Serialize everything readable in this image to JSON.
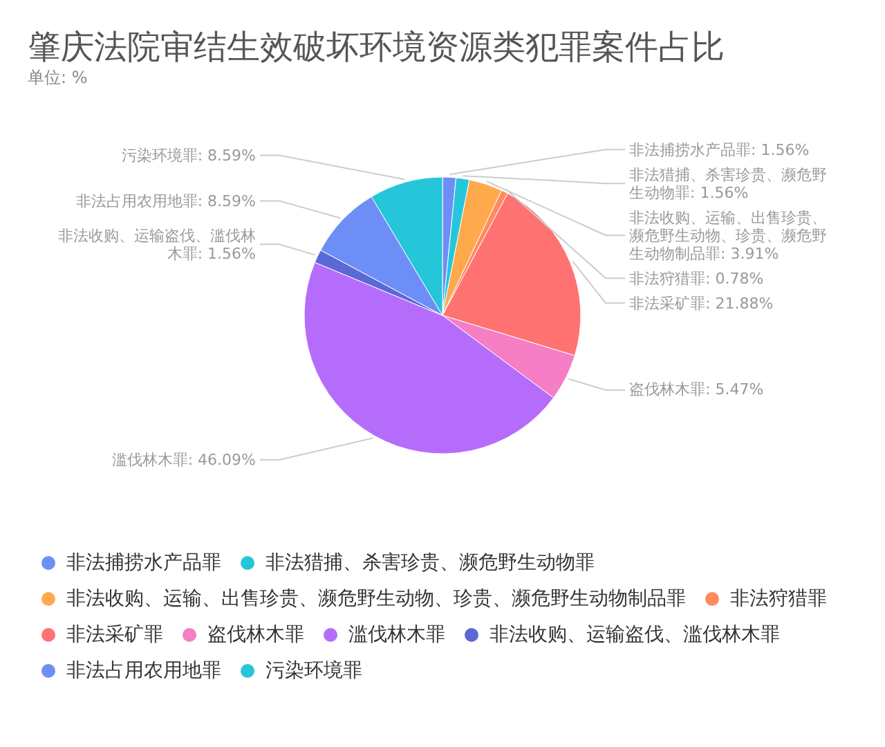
{
  "chart_data": {
    "type": "pie",
    "title": "肇庆法院审结生效破坏环境资源类犯罪案件占比",
    "subtitle": "单位: %",
    "categories": [
      "非法捕捞水产品罪",
      "非法猎捕、杀害珍贵、濒危野生动物罪",
      "非法收购、运输、出售珍贵、濒危野生动物、珍贵、濒危野生动物制品罪",
      "非法狩猎罪",
      "非法采矿罪",
      "盗伐林木罪",
      "滥伐林木罪",
      "非法收购、运输盗伐、滥伐林木罪",
      "非法占用农用地罪",
      "污染环境罪"
    ],
    "values": [
      1.56,
      1.56,
      3.91,
      0.78,
      21.88,
      5.47,
      46.09,
      1.56,
      8.59,
      8.59
    ],
    "value_labels": [
      "非法捕捞水产品罪: 1.56%",
      "非法猎捕、杀害珍贵、濒危野生动物罪: 1.56%",
      "非法收购、运输、出售珍贵、濒危野生动物、珍贵、濒危野生动物制品罪: 3.91%",
      "非法狩猎罪: 0.78%",
      "非法采矿罪: 21.88%",
      "盗伐林木罪: 5.47%",
      "滥伐林木罪: 46.09%",
      "非法收购、运输盗伐、滥伐林木罪: 1.56%",
      "非法占用农用地罪: 8.59%",
      "污染环境罪: 8.59%"
    ],
    "colors": [
      "#6e8ef7",
      "#26c6da",
      "#ffa94d",
      "#ff8a5b",
      "#ff7272",
      "#f57ec5",
      "#b66cfb",
      "#5a69d6",
      "#6e8ef7",
      "#26c6da"
    ],
    "legend": "bottom"
  }
}
